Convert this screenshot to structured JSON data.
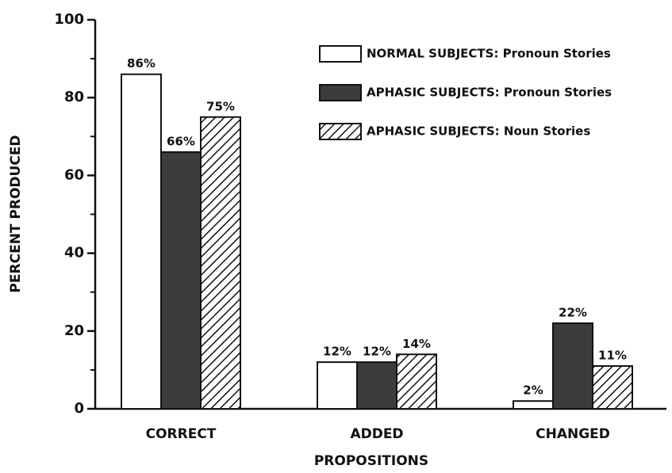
{
  "chart_data": {
    "type": "bar",
    "xlabel": "PROPOSITIONS",
    "ylabel": "PERCENT PRODUCED",
    "categories": [
      "CORRECT",
      "ADDED",
      "CHANGED"
    ],
    "series": [
      {
        "name": "NORMAL SUBJECTS: Pronoun Stories",
        "color": "#ffffff",
        "values": [
          86,
          12,
          2
        ],
        "value_labels": [
          "86%",
          "12%",
          "2%"
        ]
      },
      {
        "name": "APHASIC SUBJECTS: Pronoun Stories",
        "color": "#3c3c3c",
        "values": [
          66,
          12,
          22
        ],
        "value_labels": [
          "66%",
          "12%",
          "22%"
        ]
      },
      {
        "name": "APHASIC SUBJECTS: Noun Stories",
        "color": "#ffffff",
        "hatch": true,
        "values": [
          75,
          14,
          11
        ],
        "value_labels": [
          "75%",
          "14%",
          "11%"
        ]
      }
    ],
    "ylim": [
      0,
      100
    ],
    "yticks": [
      0,
      20,
      40,
      60,
      80,
      100
    ],
    "yminorticks": [
      10,
      30,
      50,
      70,
      90
    ],
    "legend": "upper right"
  }
}
